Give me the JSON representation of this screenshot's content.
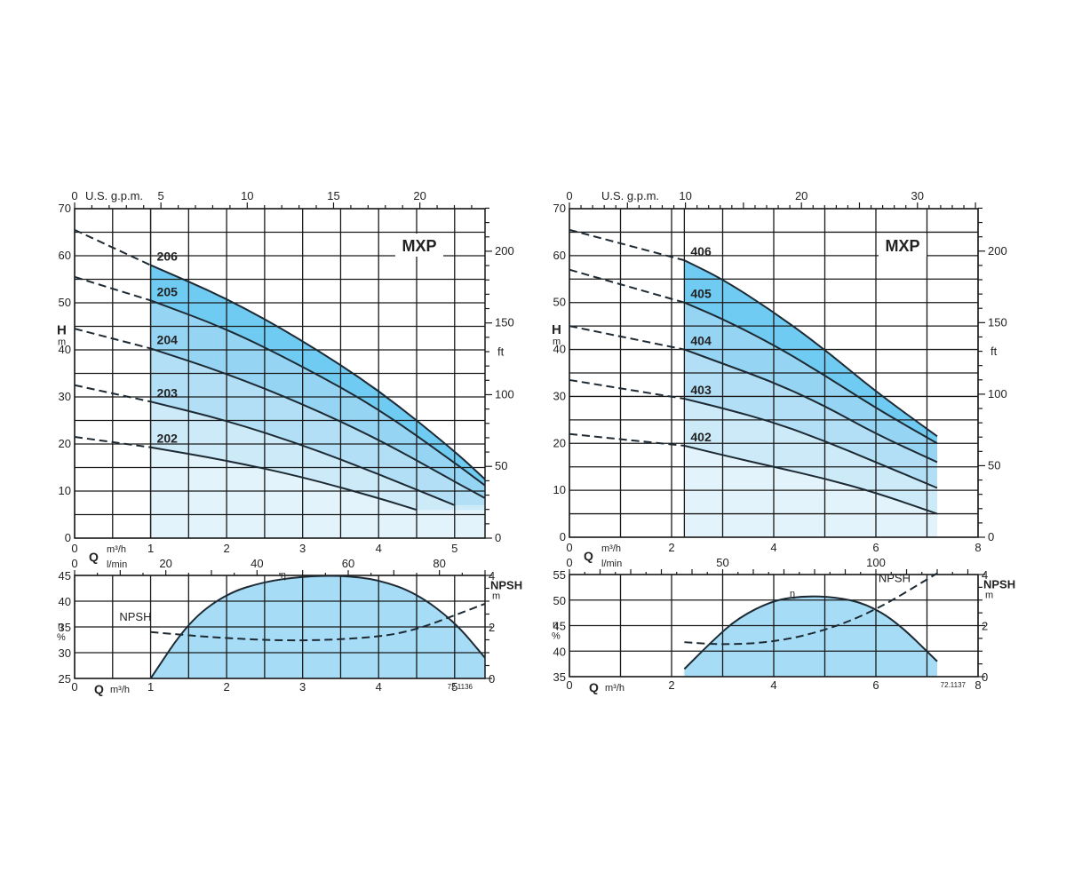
{
  "chart_data": [
    {
      "type": "line",
      "id": "mxp-200",
      "title": "MXP",
      "x_label": "Q",
      "x_unit_primary": "m³/h",
      "x_unit_secondary": "l/min",
      "x_unit_top": "U.S. g.p.m.",
      "y_label": "H",
      "y_unit": "m",
      "y_unit_right": "ft",
      "xlim": [
        0,
        5.4
      ],
      "ylim": [
        0,
        70
      ],
      "x_ticks": [
        0,
        1,
        2,
        3,
        4,
        5
      ],
      "y_ticks": [
        0,
        10,
        20,
        30,
        40,
        50,
        60,
        70
      ],
      "gpm_ticks": [
        0,
        5,
        10,
        15,
        20
      ],
      "lmin_ticks": [
        0,
        20,
        40,
        60,
        80
      ],
      "ft_ticks": [
        0,
        50,
        100,
        150,
        200
      ],
      "operating_range": [
        1,
        5.4
      ],
      "series": [
        {
          "name": "202",
          "dashed": {
            "x": [
              0,
              1
            ],
            "y": [
              21.5,
              19.3
            ]
          },
          "solid": {
            "x": [
              1,
              2,
              3,
              4,
              4.5
            ],
            "y": [
              19.3,
              16.5,
              13,
              8.5,
              6
            ]
          }
        },
        {
          "name": "203",
          "dashed": {
            "x": [
              0,
              1
            ],
            "y": [
              32.5,
              29
            ]
          },
          "solid": {
            "x": [
              1,
              2,
              3,
              4,
              5
            ],
            "y": [
              29,
              25,
              19.8,
              13.6,
              7
            ]
          }
        },
        {
          "name": "204",
          "dashed": {
            "x": [
              0,
              1
            ],
            "y": [
              44.5,
              40.3
            ]
          },
          "solid": {
            "x": [
              1,
              2,
              3,
              4,
              5,
              5.4
            ],
            "y": [
              40.3,
              35,
              28.5,
              21,
              12,
              8.5
            ]
          }
        },
        {
          "name": "205",
          "dashed": {
            "x": [
              0,
              1
            ],
            "y": [
              55.5,
              50.5
            ]
          },
          "solid": {
            "x": [
              1,
              2,
              3,
              4,
              5,
              5.4
            ],
            "y": [
              50.5,
              44.5,
              36.5,
              27.5,
              16,
              11.2
            ]
          }
        },
        {
          "name": "206",
          "dashed": {
            "x": [
              0,
              1
            ],
            "y": [
              65.5,
              58
            ]
          },
          "solid": {
            "x": [
              1,
              2,
              3,
              4,
              5,
              5.4
            ],
            "y": [
              58,
              51,
              42,
              31.5,
              18.5,
              12.5
            ]
          }
        }
      ],
      "efficiency": {
        "label": "η",
        "unit": "%",
        "ylim": [
          25,
          45
        ],
        "y_ticks": [
          25,
          30,
          35,
          40,
          45
        ],
        "x": [
          1,
          1.5,
          2,
          2.5,
          3,
          3.5,
          4,
          4.5,
          5,
          5.4
        ],
        "y": [
          25,
          36,
          41.5,
          43.8,
          44.8,
          45,
          44.2,
          41.5,
          36,
          29
        ]
      },
      "npsh": {
        "label": "NPSH",
        "unit": "m",
        "ylim": [
          0,
          4
        ],
        "y_ticks": [
          0,
          2,
          4
        ],
        "x": [
          1,
          2,
          3,
          4,
          4.5,
          5,
          5.4
        ],
        "y": [
          1.8,
          1.55,
          1.45,
          1.6,
          1.9,
          2.45,
          2.9
        ]
      },
      "code": "72.1136"
    },
    {
      "type": "line",
      "id": "mxp-400",
      "title": "MXP",
      "x_label": "Q",
      "x_unit_primary": "m³/h",
      "x_unit_secondary": "l/min",
      "x_unit_top": "U.S. g.p.m.",
      "y_label": "H",
      "y_unit": "m",
      "y_unit_right": "ft",
      "xlim": [
        0,
        8
      ],
      "ylim": [
        0,
        70
      ],
      "x_ticks": [
        0,
        2,
        4,
        6,
        8
      ],
      "y_ticks": [
        0,
        10,
        20,
        30,
        40,
        50,
        60,
        70
      ],
      "gpm_ticks": [
        0,
        10,
        20,
        30
      ],
      "lmin_ticks": [
        0,
        50,
        100
      ],
      "ft_ticks": [
        0,
        50,
        100,
        150,
        200
      ],
      "operating_range": [
        2.25,
        7.2
      ],
      "series": [
        {
          "name": "402",
          "dashed": {
            "x": [
              0,
              2.25
            ],
            "y": [
              22,
              19.5
            ]
          },
          "solid": {
            "x": [
              2.25,
              3,
              4,
              5,
              6,
              7.2
            ],
            "y": [
              19.5,
              17.5,
              15,
              12.5,
              9.5,
              5
            ]
          }
        },
        {
          "name": "403",
          "dashed": {
            "x": [
              0,
              2.25
            ],
            "y": [
              33.5,
              29.5
            ]
          },
          "solid": {
            "x": [
              2.25,
              3,
              4,
              5,
              6,
              7.2
            ],
            "y": [
              29.5,
              27.5,
              24.5,
              20.5,
              16,
              10.5
            ]
          }
        },
        {
          "name": "404",
          "dashed": {
            "x": [
              0,
              2.25
            ],
            "y": [
              45,
              40
            ]
          },
          "solid": {
            "x": [
              2.25,
              3,
              4,
              5,
              6,
              7.2
            ],
            "y": [
              40,
              37,
              33,
              28,
              22,
              16
            ]
          }
        },
        {
          "name": "405",
          "dashed": {
            "x": [
              0,
              2.25
            ],
            "y": [
              57,
              50
            ]
          },
          "solid": {
            "x": [
              2.25,
              3,
              4,
              5,
              6,
              7.2
            ],
            "y": [
              50,
              46.5,
              41,
              34.5,
              27.5,
              20
            ]
          }
        },
        {
          "name": "406",
          "dashed": {
            "x": [
              0,
              2.25
            ],
            "y": [
              65.5,
              59
            ]
          },
          "solid": {
            "x": [
              2.25,
              3,
              4,
              5,
              6,
              7.2
            ],
            "y": [
              59,
              55,
              48,
              40,
              31,
              21.5
            ]
          }
        }
      ],
      "efficiency": {
        "label": "η",
        "unit": "%",
        "ylim": [
          35,
          55
        ],
        "y_ticks": [
          35,
          40,
          45,
          50,
          55
        ],
        "x": [
          2.25,
          2.8,
          3.3,
          4,
          4.6,
          5.2,
          5.8,
          6.4,
          7.2
        ],
        "y": [
          36.5,
          42,
          46.5,
          50,
          50.8,
          50.6,
          49.3,
          45.8,
          38
        ]
      },
      "npsh": {
        "label": "NPSH",
        "unit": "m",
        "ylim": [
          0,
          4
        ],
        "y_ticks": [
          0,
          2,
          4
        ],
        "x": [
          2.25,
          3,
          4,
          5,
          6,
          7.2
        ],
        "y": [
          1.35,
          1.25,
          1.35,
          1.8,
          2.6,
          4.05
        ]
      },
      "code": "72.1137"
    }
  ]
}
